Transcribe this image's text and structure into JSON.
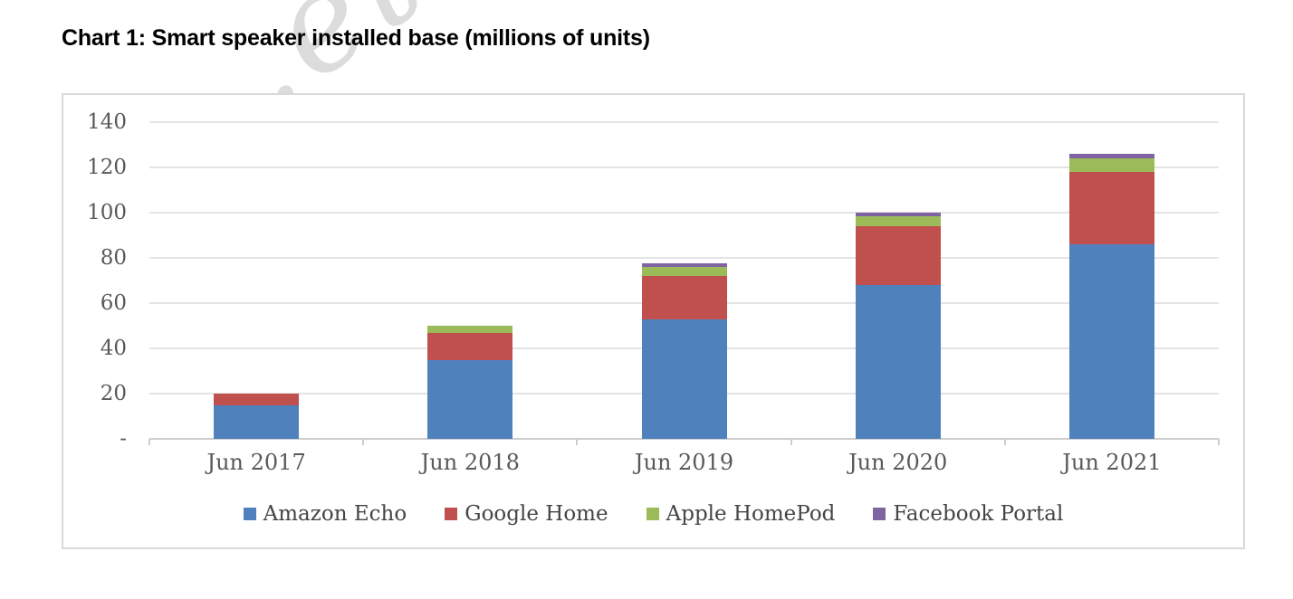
{
  "watermark": {
    "text": ".etam"
  },
  "chart_data": {
    "type": "bar",
    "stacked": true,
    "title": "Chart 1: Smart speaker installed base (millions of units)",
    "categories": [
      "Jun 2017",
      "Jun 2018",
      "Jun 2019",
      "Jun 2020",
      "Jun 2021"
    ],
    "series": [
      {
        "name": "Amazon Echo",
        "color": "#4F81BD",
        "values": [
          15,
          35,
          53,
          68,
          86
        ]
      },
      {
        "name": "Google Home",
        "color": "#C0504D",
        "values": [
          5,
          12,
          19,
          26,
          32
        ]
      },
      {
        "name": "Apple HomePod",
        "color": "#9BBB59",
        "values": [
          0,
          3,
          4,
          4.5,
          6
        ]
      },
      {
        "name": "Facebook Portal",
        "color": "#8064A2",
        "values": [
          0,
          0,
          1.5,
          1.5,
          2
        ]
      }
    ],
    "xlabel": "",
    "ylabel": "",
    "ylim": [
      0,
      140
    ],
    "yticks": [
      140,
      120,
      100,
      80,
      60,
      40,
      20,
      0
    ],
    "ytick_labels": [
      "140",
      "120",
      "100",
      "80",
      "60",
      "40",
      "20",
      "-"
    ],
    "grid": true,
    "legend_position": "bottom"
  },
  "colors": {
    "background": "#FFFFFF",
    "title_text": "#000000",
    "axis_text": "#595959",
    "legend_text": "#454545",
    "gridline": "#E4E4E4",
    "axis_line": "#CDCDCD",
    "frame_border": "#D9D9D9",
    "watermark": "#DCDCDC"
  }
}
